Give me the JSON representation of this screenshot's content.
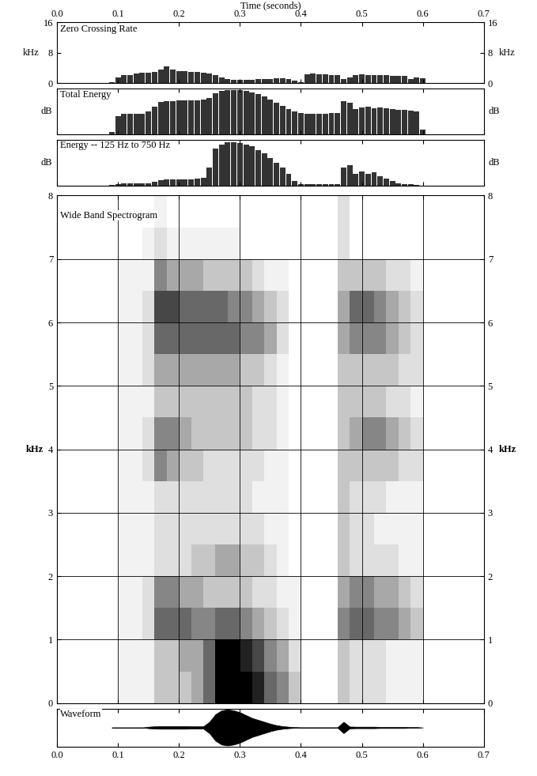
{
  "time_axis": {
    "label": "Time (seconds)",
    "xlim": [
      0.0,
      0.7
    ],
    "xticks": [
      0.0,
      0.1,
      0.2,
      0.3,
      0.4,
      0.5,
      0.6,
      0.7
    ]
  },
  "chart_data": [
    {
      "type": "bar",
      "title": "Zero Crossing Rate",
      "ylabel": "kHz",
      "color": "#333333",
      "ylim": [
        0,
        16
      ],
      "yticks": [
        0,
        8,
        16
      ],
      "x": [
        0.09,
        0.1,
        0.11,
        0.12,
        0.13,
        0.14,
        0.15,
        0.16,
        0.17,
        0.18,
        0.19,
        0.2,
        0.21,
        0.22,
        0.23,
        0.24,
        0.25,
        0.26,
        0.27,
        0.28,
        0.29,
        0.3,
        0.31,
        0.32,
        0.33,
        0.34,
        0.35,
        0.36,
        0.37,
        0.38,
        0.39,
        0.4,
        0.41,
        0.42,
        0.43,
        0.44,
        0.45,
        0.46,
        0.47,
        0.48,
        0.49,
        0.5,
        0.51,
        0.52,
        0.53,
        0.54,
        0.55,
        0.56,
        0.57,
        0.58,
        0.59,
        0.6
      ],
      "values": [
        0.3,
        1.5,
        2,
        2.2,
        2.5,
        2.7,
        2.8,
        3,
        3.5,
        4.5,
        3.5,
        3.2,
        3.2,
        3,
        3,
        2.8,
        2.5,
        2,
        1.5,
        1,
        0.8,
        0.8,
        0.8,
        0.9,
        1,
        1,
        1.1,
        1.2,
        1.2,
        1,
        0.6,
        0.3,
        2.3,
        2.5,
        2.4,
        2.3,
        2.2,
        2,
        1,
        1.5,
        2,
        2.3,
        2.2,
        2,
        2,
        2,
        1.9,
        1.8,
        1.8,
        1,
        1.5,
        1.2
      ]
    },
    {
      "type": "bar",
      "title": "Total Energy",
      "ylabel": "dB",
      "color": "#333333",
      "ylim": [
        0,
        100
      ],
      "yticks": [],
      "tick_labels": false,
      "x": [
        0.09,
        0.1,
        0.11,
        0.12,
        0.13,
        0.14,
        0.15,
        0.16,
        0.17,
        0.18,
        0.19,
        0.2,
        0.21,
        0.22,
        0.23,
        0.24,
        0.25,
        0.26,
        0.27,
        0.28,
        0.29,
        0.3,
        0.31,
        0.32,
        0.33,
        0.34,
        0.35,
        0.36,
        0.37,
        0.38,
        0.39,
        0.4,
        0.41,
        0.42,
        0.43,
        0.44,
        0.45,
        0.46,
        0.47,
        0.48,
        0.49,
        0.5,
        0.51,
        0.52,
        0.53,
        0.54,
        0.55,
        0.56,
        0.57,
        0.58,
        0.59,
        0.6
      ],
      "values": [
        5,
        40,
        45,
        45,
        45,
        45,
        50,
        60,
        70,
        72,
        73,
        74,
        74,
        74,
        74,
        75,
        80,
        90,
        95,
        97,
        97,
        96,
        94,
        92,
        88,
        82,
        75,
        68,
        62,
        55,
        50,
        47,
        45,
        45,
        45,
        45,
        46,
        47,
        72,
        68,
        55,
        58,
        60,
        57,
        58,
        56,
        55,
        54,
        53,
        52,
        50,
        10
      ]
    },
    {
      "type": "bar",
      "title": "Energy -- 125 Hz to 750 Hz",
      "ylabel": "dB",
      "color": "#333333",
      "ylim": [
        0,
        100
      ],
      "yticks": [],
      "tick_labels": false,
      "x": [
        0.09,
        0.1,
        0.11,
        0.12,
        0.13,
        0.14,
        0.15,
        0.16,
        0.17,
        0.18,
        0.19,
        0.2,
        0.21,
        0.22,
        0.23,
        0.24,
        0.25,
        0.26,
        0.27,
        0.28,
        0.29,
        0.3,
        0.31,
        0.32,
        0.33,
        0.34,
        0.35,
        0.36,
        0.37,
        0.38,
        0.39,
        0.4,
        0.41,
        0.42,
        0.43,
        0.44,
        0.45,
        0.46,
        0.47,
        0.48,
        0.49,
        0.5,
        0.51,
        0.52,
        0.53,
        0.54,
        0.55,
        0.56,
        0.57,
        0.58,
        0.59,
        0.6
      ],
      "values": [
        2,
        3,
        4,
        4,
        4,
        4,
        5,
        8,
        12,
        13,
        13,
        14,
        14,
        14,
        15,
        16,
        40,
        80,
        90,
        95,
        95,
        93,
        90,
        85,
        78,
        70,
        60,
        50,
        40,
        25,
        10,
        3,
        3,
        3,
        3,
        3,
        3,
        3,
        40,
        45,
        25,
        30,
        25,
        28,
        20,
        15,
        10,
        5,
        3,
        3,
        2,
        0
      ]
    },
    {
      "type": "heatmap",
      "title": "Wide Band Spectrogram",
      "ylabel": "kHz",
      "ylim": [
        0,
        8
      ],
      "yticks": [
        0,
        1,
        2,
        3,
        4,
        5,
        6,
        7,
        8
      ],
      "grid": true,
      "tick_labels": "y",
      "time_edges": [
        0.08,
        0.1,
        0.12,
        0.14,
        0.16,
        0.18,
        0.2,
        0.22,
        0.24,
        0.26,
        0.28,
        0.3,
        0.32,
        0.34,
        0.36,
        0.38,
        0.4,
        0.42,
        0.44,
        0.46,
        0.48,
        0.5,
        0.52,
        0.54,
        0.56,
        0.58,
        0.6,
        0.62
      ],
      "freq_edges": [
        0,
        0.5,
        1,
        1.5,
        2,
        2.5,
        3,
        3.5,
        4,
        4.5,
        5,
        5.5,
        6,
        6.5,
        7,
        7.5,
        8
      ],
      "cells": [
        [
          0,
          1,
          1,
          1,
          3,
          3,
          3,
          4,
          6,
          9,
          9,
          9,
          8,
          6,
          5,
          3,
          0,
          0,
          0,
          3,
          2,
          2,
          2,
          1,
          1,
          1,
          0
        ],
        [
          0,
          1,
          1,
          1,
          3,
          3,
          4,
          4,
          6,
          9,
          9,
          8,
          7,
          5,
          4,
          2,
          0,
          0,
          0,
          3,
          2,
          2,
          2,
          1,
          1,
          1,
          0
        ],
        [
          0,
          1,
          1,
          2,
          6,
          6,
          6,
          5,
          5,
          6,
          6,
          5,
          4,
          3,
          2,
          1,
          0,
          0,
          0,
          5,
          6,
          6,
          5,
          5,
          4,
          3,
          0
        ],
        [
          0,
          1,
          1,
          2,
          5,
          5,
          4,
          4,
          3,
          3,
          3,
          3,
          2,
          2,
          1,
          1,
          0,
          0,
          0,
          4,
          5,
          5,
          4,
          4,
          3,
          2,
          0
        ],
        [
          0,
          1,
          1,
          1,
          2,
          2,
          2,
          3,
          3,
          4,
          4,
          3,
          3,
          2,
          1,
          0,
          0,
          0,
          0,
          3,
          2,
          2,
          2,
          2,
          1,
          1,
          0
        ],
        [
          0,
          1,
          1,
          1,
          2,
          2,
          2,
          2,
          2,
          2,
          2,
          2,
          2,
          1,
          1,
          0,
          0,
          0,
          0,
          3,
          2,
          2,
          1,
          1,
          1,
          1,
          0
        ],
        [
          0,
          1,
          1,
          1,
          2,
          2,
          2,
          2,
          2,
          2,
          2,
          2,
          1,
          1,
          1,
          0,
          0,
          0,
          0,
          3,
          2,
          2,
          2,
          1,
          1,
          1,
          0
        ],
        [
          0,
          1,
          1,
          2,
          5,
          4,
          3,
          3,
          2,
          2,
          2,
          2,
          2,
          1,
          1,
          0,
          0,
          0,
          0,
          3,
          3,
          3,
          3,
          3,
          2,
          2,
          0
        ],
        [
          0,
          1,
          1,
          2,
          5,
          5,
          4,
          3,
          3,
          3,
          3,
          3,
          2,
          2,
          1,
          0,
          0,
          0,
          0,
          3,
          4,
          5,
          5,
          4,
          3,
          2,
          0
        ],
        [
          0,
          1,
          1,
          1,
          3,
          3,
          3,
          3,
          3,
          3,
          3,
          3,
          2,
          2,
          1,
          0,
          0,
          0,
          0,
          3,
          3,
          3,
          3,
          2,
          2,
          1,
          0
        ],
        [
          0,
          1,
          1,
          2,
          4,
          4,
          4,
          4,
          4,
          4,
          4,
          3,
          3,
          2,
          1,
          0,
          0,
          0,
          0,
          3,
          3,
          3,
          3,
          3,
          2,
          2,
          0
        ],
        [
          0,
          1,
          1,
          2,
          6,
          6,
          6,
          6,
          6,
          6,
          6,
          5,
          5,
          4,
          2,
          0,
          0,
          0,
          0,
          4,
          5,
          5,
          5,
          4,
          3,
          2,
          0
        ],
        [
          0,
          1,
          1,
          2,
          7,
          7,
          6,
          6,
          6,
          6,
          5,
          5,
          4,
          3,
          2,
          0,
          0,
          0,
          0,
          4,
          6,
          6,
          5,
          4,
          3,
          2,
          0
        ],
        [
          0,
          1,
          1,
          1,
          5,
          4,
          4,
          4,
          3,
          3,
          3,
          3,
          2,
          1,
          1,
          0,
          0,
          0,
          0,
          3,
          3,
          3,
          3,
          2,
          2,
          1,
          0
        ],
        [
          0,
          0,
          0,
          1,
          2,
          1,
          1,
          1,
          1,
          1,
          1,
          0,
          0,
          0,
          0,
          0,
          0,
          0,
          0,
          2,
          0,
          0,
          0,
          0,
          0,
          0,
          0
        ],
        [
          0,
          0,
          0,
          0,
          1,
          0,
          0,
          0,
          0,
          0,
          0,
          0,
          0,
          0,
          0,
          0,
          0,
          0,
          0,
          2,
          0,
          0,
          0,
          0,
          0,
          0,
          0
        ]
      ]
    },
    {
      "type": "envelope",
      "title": "Waveform",
      "color": "#000000",
      "ylim": [
        -1,
        1
      ],
      "yticks": [],
      "tick_labels": "x",
      "x": [
        0.09,
        0.1,
        0.11,
        0.12,
        0.13,
        0.14,
        0.15,
        0.16,
        0.17,
        0.18,
        0.19,
        0.2,
        0.21,
        0.22,
        0.23,
        0.24,
        0.25,
        0.26,
        0.27,
        0.28,
        0.29,
        0.3,
        0.31,
        0.32,
        0.33,
        0.34,
        0.35,
        0.36,
        0.37,
        0.38,
        0.39,
        0.4,
        0.41,
        0.42,
        0.43,
        0.44,
        0.45,
        0.46,
        0.47,
        0.48,
        0.49,
        0.5,
        0.51,
        0.52,
        0.53,
        0.54,
        0.55,
        0.56,
        0.57,
        0.58,
        0.59,
        0.6
      ],
      "values": [
        0,
        0,
        0,
        0,
        0,
        0,
        0.04,
        0.06,
        0.07,
        0.07,
        0.07,
        0.07,
        0.07,
        0.06,
        0.06,
        0.06,
        0.3,
        0.7,
        0.9,
        0.95,
        0.9,
        0.8,
        0.65,
        0.5,
        0.4,
        0.3,
        0.2,
        0.12,
        0.07,
        0.04,
        0.02,
        0.01,
        0.01,
        0.01,
        0.01,
        0.01,
        0.01,
        0.01,
        0.3,
        0.05,
        0.04,
        0.04,
        0.04,
        0.04,
        0.03,
        0.03,
        0.03,
        0.03,
        0.03,
        0.02,
        0.02,
        0
      ]
    }
  ]
}
